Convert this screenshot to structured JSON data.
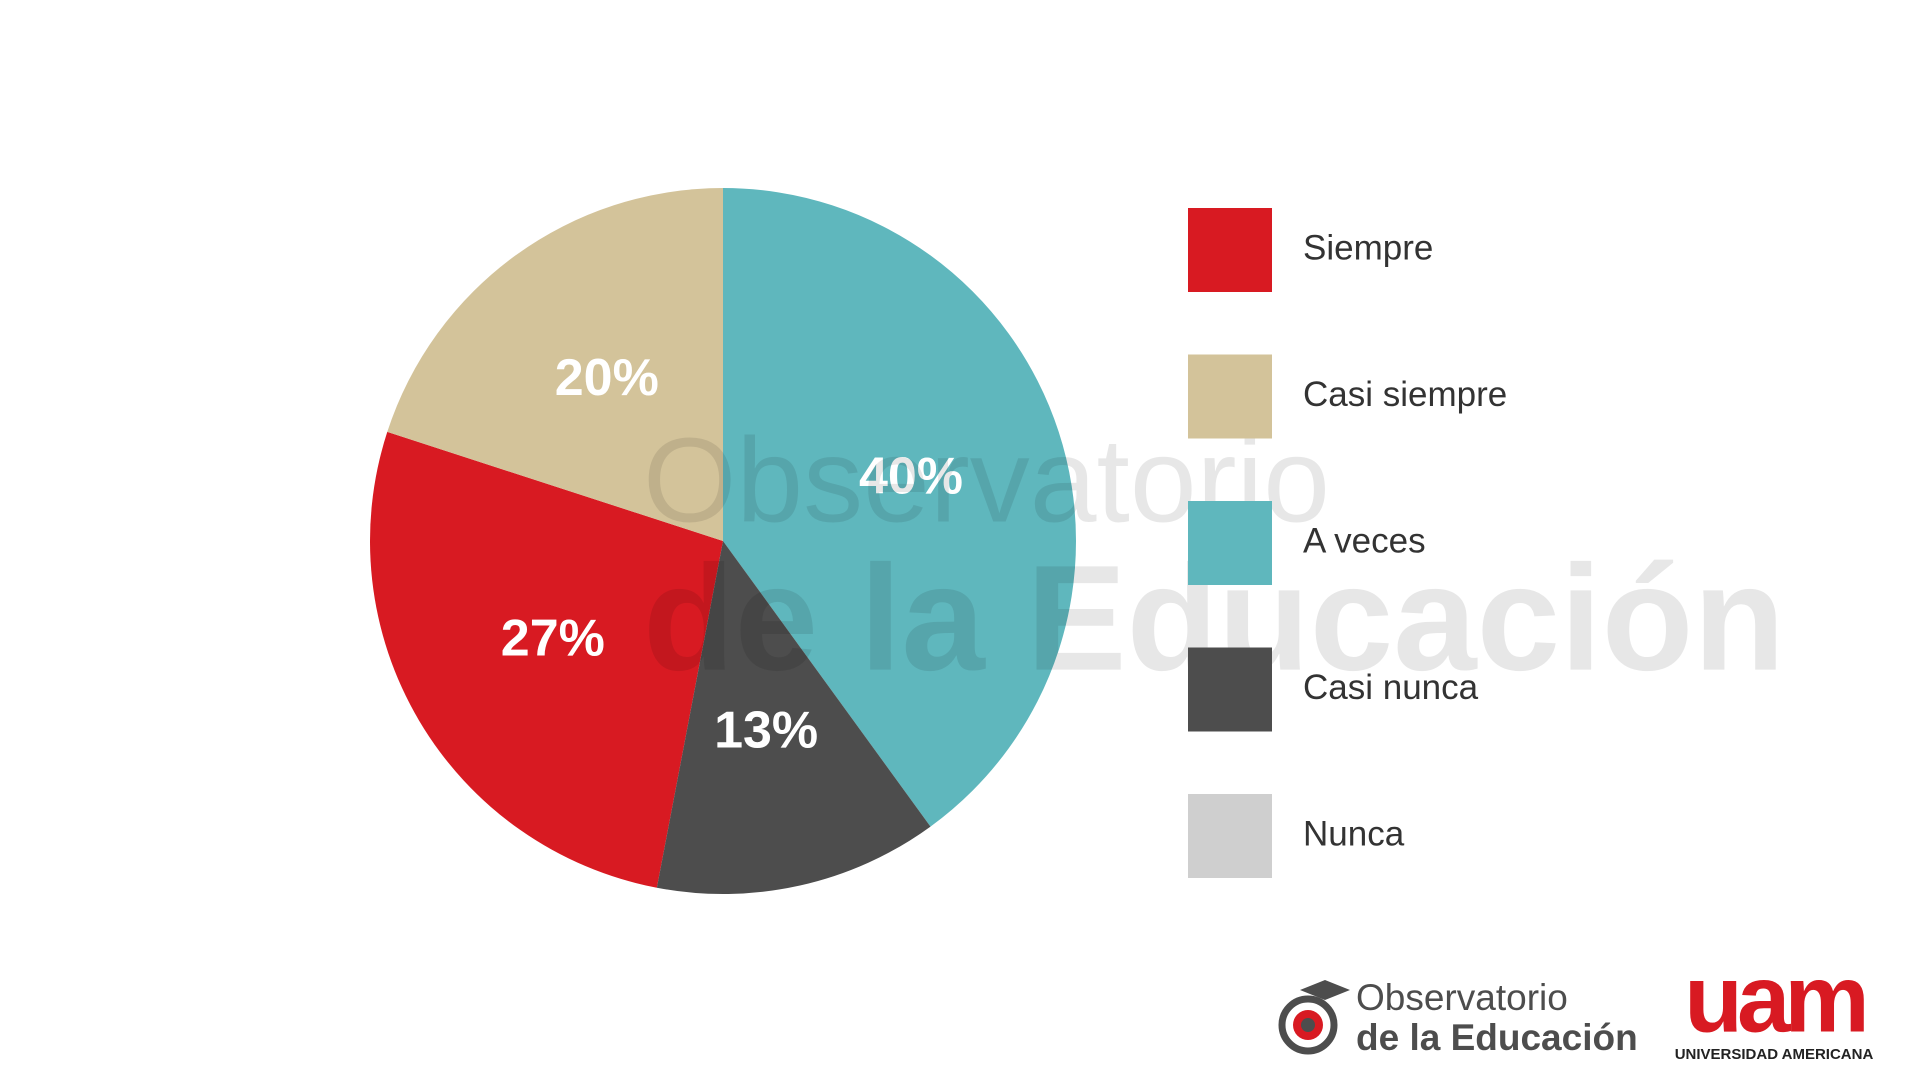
{
  "chart_data": {
    "type": "pie",
    "categories": [
      "Siempre",
      "Casi siempre",
      "A veces",
      "Casi nunca",
      "Nunca"
    ],
    "values": [
      27,
      20,
      40,
      13,
      0
    ],
    "value_labels": [
      "27%",
      "20%",
      "40%",
      "13%",
      null
    ],
    "colors": [
      "#d81a22",
      "#d3c39a",
      "#5fb7bd",
      "#4d4d4d",
      "#cfcfcf"
    ],
    "legend": "right"
  },
  "watermark": {
    "line1": "Observatorio",
    "line2": "de la Educación"
  },
  "logos": {
    "observatorio_line1": "Observatorio",
    "observatorio_line2": "de la Educación",
    "uam_mark": "uam",
    "uam_name": "UNIVERSIDAD AMERICANA"
  }
}
